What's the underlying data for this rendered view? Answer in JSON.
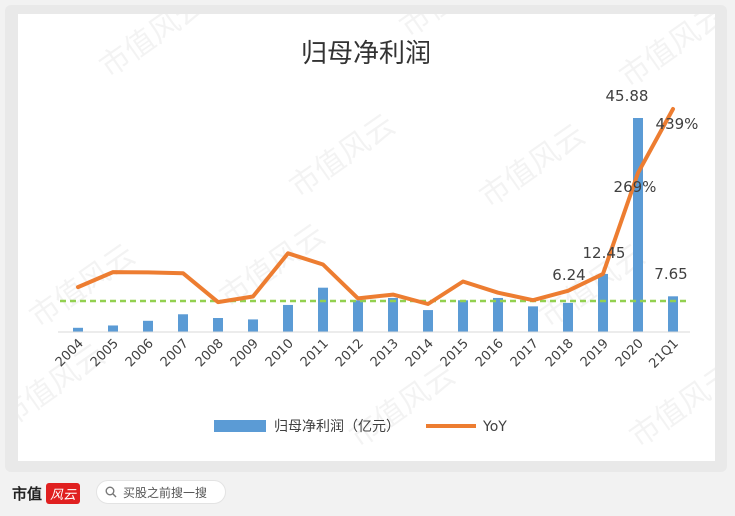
{
  "footer": {
    "brand": "市值",
    "brand_badge": "风云",
    "search_text": "买股之前搜一搜"
  },
  "watermark": "市值风云",
  "colors": {
    "bar": "#5b9bd5",
    "line": "#ed7d31",
    "refline": "#92d050"
  },
  "chart_data": {
    "type": "bar",
    "title": "归母净利润",
    "categories": [
      "2004",
      "2005",
      "2006",
      "2007",
      "2008",
      "2009",
      "2010",
      "2011",
      "2012",
      "2013",
      "2014",
      "2015",
      "2016",
      "2017",
      "2018",
      "2019",
      "2020",
      "21Q1"
    ],
    "series": [
      {
        "name": "归母净利润（亿元）",
        "type": "bar",
        "values": [
          0.9,
          1.4,
          2.4,
          3.8,
          3.0,
          2.7,
          5.8,
          9.5,
          6.8,
          7.3,
          4.7,
          6.8,
          7.3,
          5.5,
          6.24,
          12.45,
          45.88,
          7.65
        ],
        "labels": {
          "15": "6.24",
          "16": "12.45",
          "17": "45.88",
          "18": "7.65"
        }
      },
      {
        "name": "YoY",
        "type": "line",
        "values": [
          -35,
          5,
          4,
          2,
          -75,
          -60,
          55,
          25,
          -65,
          -55,
          -80,
          -20,
          -50,
          -70,
          -45,
          0,
          269,
          439
        ],
        "labels": {
          "17": "269%",
          "18": "439%"
        }
      }
    ],
    "reference_line": {
      "style": "dashed",
      "color": "#92d050"
    },
    "legend": "bottom",
    "grid": false
  }
}
